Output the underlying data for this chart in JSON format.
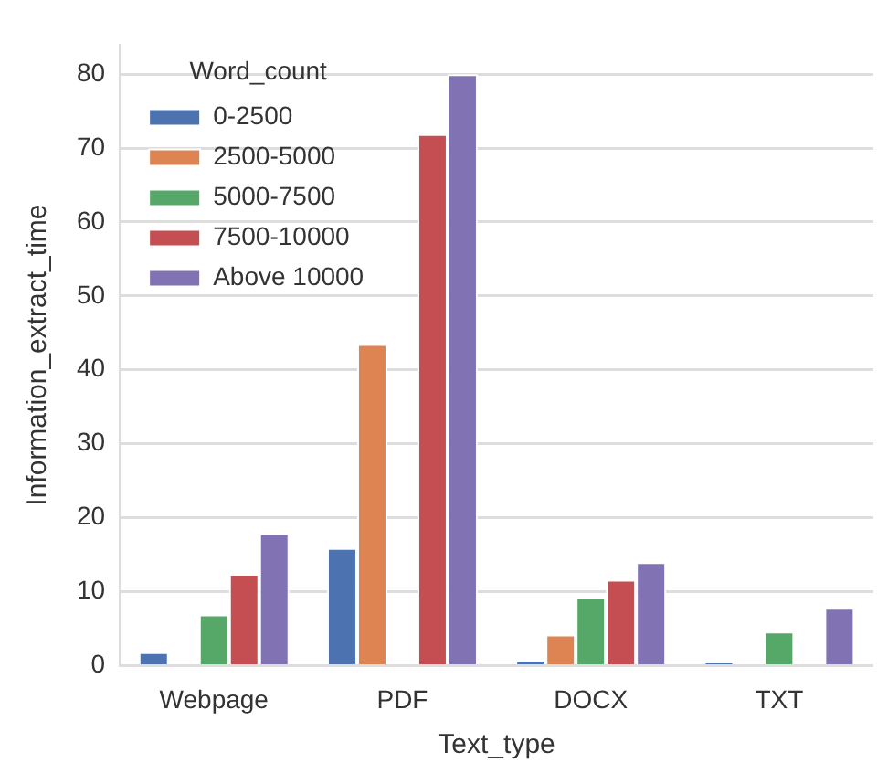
{
  "chart_data": {
    "type": "bar",
    "xlabel": "Text_type",
    "ylabel": "Information_extract_time",
    "legend_title": "Word_count",
    "categories": [
      "Webpage",
      "PDF",
      "DOCX",
      "TXT"
    ],
    "series": [
      {
        "name": "0-2500",
        "color": "#4c72b0",
        "values": [
          1.8,
          15.9,
          0.8,
          0.4
        ]
      },
      {
        "name": "2500-5000",
        "color": "#dd8452",
        "values": [
          null,
          43.5,
          4.2,
          null
        ]
      },
      {
        "name": "5000-7500",
        "color": "#55a868",
        "values": [
          6.9,
          null,
          9.2,
          4.6
        ]
      },
      {
        "name": "7500-10000",
        "color": "#c44e52",
        "values": [
          12.4,
          71.9,
          11.6,
          null
        ]
      },
      {
        "name": "Above 10000",
        "color": "#8172b3",
        "values": [
          17.9,
          80,
          14,
          7.8
        ]
      }
    ],
    "ylim": [
      0,
      84
    ],
    "yticks": [
      0,
      10,
      20,
      30,
      40,
      50,
      60,
      70,
      80
    ],
    "grid": "y",
    "legend": "top left"
  }
}
